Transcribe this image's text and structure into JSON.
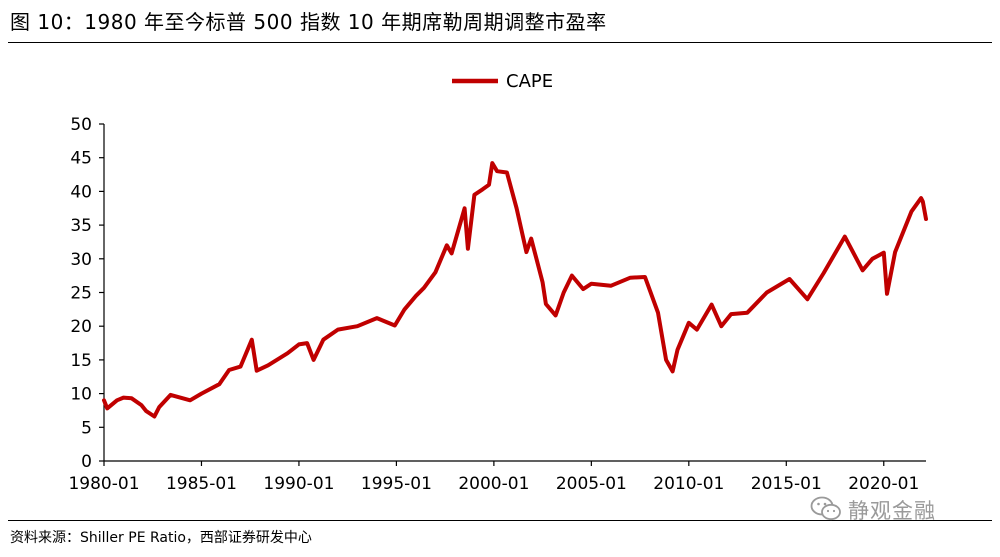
{
  "figure_title": "图 10：1980 年至今标普 500 指数 10 年期席勒周期调整市盈率",
  "source_text": "资料来源：Shiller PE Ratio，西部证券研发中心",
  "watermark_text": "静观金融",
  "colors": {
    "line": "#c00000",
    "axis": "#000000",
    "text": "#000000",
    "watermark": "#9a9a9a"
  },
  "chart_data": {
    "type": "line",
    "title": "",
    "xlabel": "",
    "ylabel": "",
    "legend": {
      "position": "top-center",
      "entries": [
        "CAPE"
      ]
    },
    "grid": false,
    "ylim": [
      0,
      50
    ],
    "yticks": [
      0,
      5,
      10,
      15,
      20,
      25,
      30,
      35,
      40,
      45,
      50
    ],
    "xlim": [
      "1980-01",
      "2022-03"
    ],
    "xtick_labels": [
      "1980-01",
      "1985-01",
      "1990-01",
      "1995-01",
      "2000-01",
      "2005-01",
      "2010-01",
      "2015-01",
      "2020-01"
    ],
    "series": [
      {
        "name": "CAPE",
        "color": "#c00000",
        "points": [
          [
            "1980-01",
            9.0
          ],
          [
            "1980-03",
            7.8
          ],
          [
            "1980-09",
            9.0
          ],
          [
            "1981-01",
            9.4
          ],
          [
            "1981-06",
            9.3
          ],
          [
            "1981-12",
            8.3
          ],
          [
            "1982-03",
            7.4
          ],
          [
            "1982-08",
            6.6
          ],
          [
            "1982-11",
            8.0
          ],
          [
            "1983-06",
            9.8
          ],
          [
            "1984-06",
            9.0
          ],
          [
            "1985-01",
            10.0
          ],
          [
            "1985-12",
            11.4
          ],
          [
            "1986-06",
            13.5
          ],
          [
            "1987-01",
            14.0
          ],
          [
            "1987-08",
            18.0
          ],
          [
            "1987-11",
            13.4
          ],
          [
            "1988-06",
            14.2
          ],
          [
            "1989-06",
            16.0
          ],
          [
            "1990-01",
            17.3
          ],
          [
            "1990-06",
            17.5
          ],
          [
            "1990-10",
            15.0
          ],
          [
            "1991-04",
            18.0
          ],
          [
            "1992-01",
            19.5
          ],
          [
            "1993-01",
            20.0
          ],
          [
            "1994-01",
            21.2
          ],
          [
            "1994-12",
            20.1
          ],
          [
            "1995-06",
            22.5
          ],
          [
            "1996-01",
            24.5
          ],
          [
            "1996-06",
            25.7
          ],
          [
            "1997-01",
            28.0
          ],
          [
            "1997-08",
            32.0
          ],
          [
            "1997-11",
            30.8
          ],
          [
            "1998-07",
            37.5
          ],
          [
            "1998-09",
            31.5
          ],
          [
            "1999-01",
            39.5
          ],
          [
            "1999-06",
            40.3
          ],
          [
            "1999-10",
            41.0
          ],
          [
            "1999-12",
            44.2
          ],
          [
            "2000-03",
            43.0
          ],
          [
            "2000-09",
            42.8
          ],
          [
            "2001-03",
            37.5
          ],
          [
            "2001-09",
            31.0
          ],
          [
            "2001-12",
            33.0
          ],
          [
            "2002-07",
            26.5
          ],
          [
            "2002-09",
            23.3
          ],
          [
            "2003-03",
            21.6
          ],
          [
            "2003-08",
            25.0
          ],
          [
            "2004-01",
            27.5
          ],
          [
            "2004-08",
            25.5
          ],
          [
            "2005-01",
            26.3
          ],
          [
            "2006-01",
            26.0
          ],
          [
            "2007-01",
            27.2
          ],
          [
            "2007-10",
            27.3
          ],
          [
            "2008-06",
            22.0
          ],
          [
            "2008-11",
            15.0
          ],
          [
            "2009-03",
            13.3
          ],
          [
            "2009-06",
            16.5
          ],
          [
            "2010-01",
            20.5
          ],
          [
            "2010-06",
            19.5
          ],
          [
            "2011-03",
            23.2
          ],
          [
            "2011-09",
            20.0
          ],
          [
            "2012-03",
            21.8
          ],
          [
            "2013-01",
            22.0
          ],
          [
            "2014-01",
            25.0
          ],
          [
            "2015-03",
            27.0
          ],
          [
            "2016-02",
            24.0
          ],
          [
            "2016-12",
            27.9
          ],
          [
            "2018-01",
            33.3
          ],
          [
            "2018-12",
            28.3
          ],
          [
            "2019-06",
            30.0
          ],
          [
            "2020-01",
            30.9
          ],
          [
            "2020-03",
            24.8
          ],
          [
            "2020-08",
            31.0
          ],
          [
            "2021-06",
            37.0
          ],
          [
            "2021-12",
            39.0
          ],
          [
            "2022-01",
            38.5
          ],
          [
            "2022-03",
            35.9
          ]
        ]
      }
    ]
  }
}
